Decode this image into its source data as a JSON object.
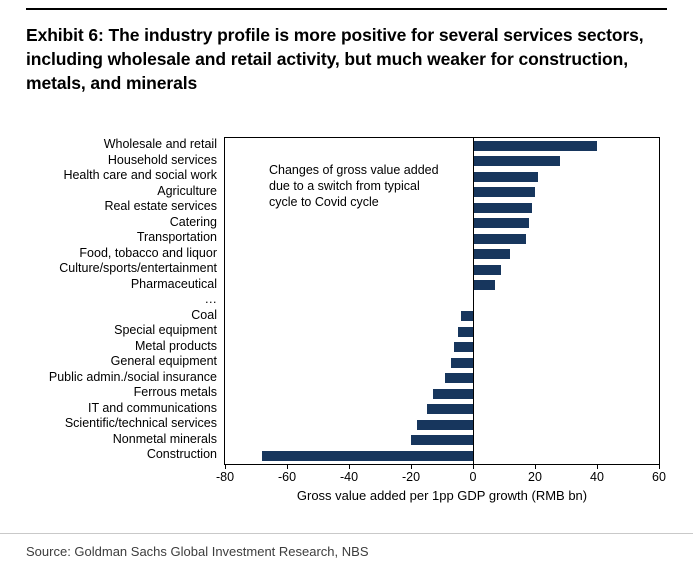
{
  "title": "Exhibit 6: The industry profile is more positive for several services sectors, including wholesale and retail activity, but much weaker for construction, metals, and minerals",
  "source": "Source: Goldman Sachs Global Investment Research, NBS",
  "chart_data": {
    "type": "bar",
    "orientation": "horizontal",
    "title": "",
    "annotation": "Changes of gross value added due to a switch from typical cycle to Covid cycle",
    "xlabel": "Gross value added per 1pp GDP growth (RMB bn)",
    "ylabel": "",
    "xlim": [
      -80,
      60
    ],
    "xticks": [
      -80,
      -60,
      -40,
      -20,
      0,
      20,
      40,
      60
    ],
    "grid": false,
    "legend": false,
    "bar_color": "#17365D",
    "categories": [
      "Wholesale and retail",
      "Household services",
      "Health care and social work",
      "Agriculture",
      "Real estate services",
      "Catering",
      "Transportation",
      "Food, tobacco and liquor",
      "Culture/sports/entertainment",
      "Pharmaceutical",
      "…",
      "Coal",
      "Special equipment",
      "Metal products",
      "General equipment",
      "Public admin./social insurance",
      "Ferrous metals",
      "IT and communications",
      "Scientific/technical services",
      "Nonmetal minerals",
      "Construction"
    ],
    "values": [
      40,
      28,
      21,
      20,
      19,
      18,
      17,
      12,
      9,
      7,
      null,
      -4,
      -5,
      -6,
      -7,
      -9,
      -13,
      -15,
      -18,
      -20,
      -68
    ]
  }
}
